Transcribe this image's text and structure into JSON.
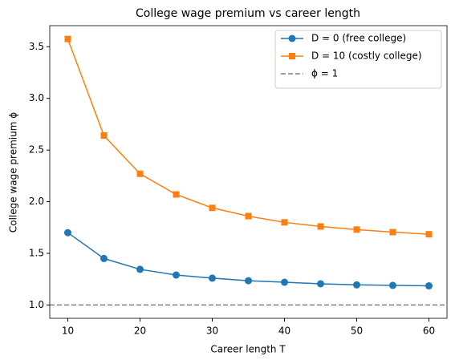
{
  "chart_data": {
    "type": "line",
    "title": "College wage premium vs career length",
    "x_label": "Career length T",
    "y_label": "College wage premium ϕ",
    "x": [
      10,
      15,
      20,
      25,
      30,
      35,
      40,
      45,
      50,
      55,
      60
    ],
    "series": [
      {
        "name": "D = 0 (free college)",
        "color": "#1f77b4",
        "marker": "circle",
        "values": [
          1.7,
          1.45,
          1.345,
          1.29,
          1.26,
          1.235,
          1.22,
          1.205,
          1.195,
          1.19,
          1.185
        ]
      },
      {
        "name": "D = 10 (costly college)",
        "color": "#ff7f0e",
        "marker": "square",
        "values": [
          3.575,
          2.64,
          2.27,
          2.07,
          1.94,
          1.86,
          1.8,
          1.76,
          1.73,
          1.705,
          1.685
        ]
      }
    ],
    "hline": {
      "name": "ϕ = 1",
      "value": 1,
      "color": "#808080"
    },
    "xlim": [
      7.5,
      62.5
    ],
    "xticks": [
      10,
      20,
      30,
      40,
      50,
      60
    ],
    "ylim": [
      0.871,
      3.704
    ],
    "yticks": [
      {
        "value": 1,
        "label": "1.0"
      },
      {
        "value": 1.5,
        "label": "1.5"
      },
      {
        "value": 2,
        "label": "2.0"
      },
      {
        "value": 2.5,
        "label": "2.5"
      },
      {
        "value": 3,
        "label": "3.0"
      },
      {
        "value": 3.5,
        "label": "3.5"
      }
    ],
    "legend": "upper right"
  }
}
